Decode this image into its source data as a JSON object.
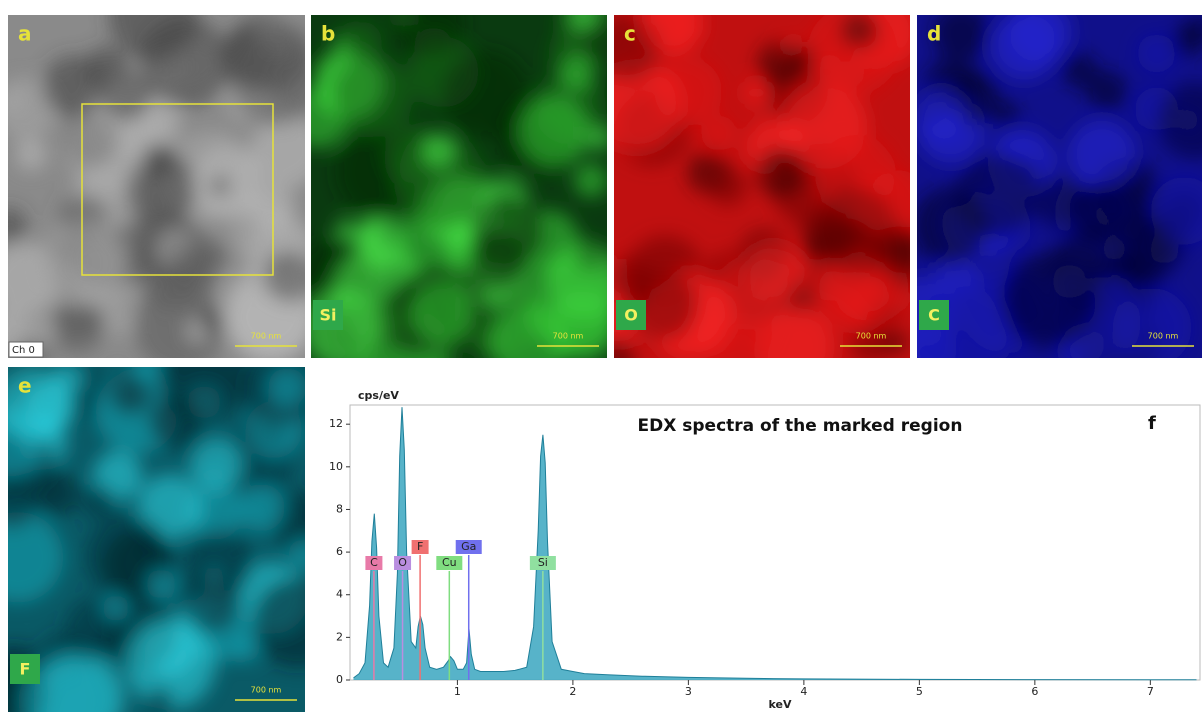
{
  "panels": [
    {
      "letter": "a",
      "channel": "Ch 0",
      "scale_bar": "700 nm"
    },
    {
      "letter": "b",
      "element": "Si",
      "scale_bar": "700 nm"
    },
    {
      "letter": "c",
      "element": "O",
      "scale_bar": "700 nm"
    },
    {
      "letter": "d",
      "element": "C",
      "scale_bar": "700 nm"
    },
    {
      "letter": "e",
      "element": "F",
      "scale_bar": "700 nm"
    }
  ],
  "chart_data": {
    "type": "area",
    "title": "EDX spectra of the marked region",
    "panel_letter": "f",
    "xlabel": "keV",
    "ylabel": "cps/eV",
    "x": [
      0.1,
      0.15,
      0.2,
      0.24,
      0.26,
      0.28,
      0.3,
      0.32,
      0.36,
      0.4,
      0.45,
      0.48,
      0.5,
      0.52,
      0.54,
      0.56,
      0.6,
      0.64,
      0.66,
      0.68,
      0.7,
      0.72,
      0.76,
      0.82,
      0.88,
      0.92,
      0.94,
      0.97,
      1.0,
      1.05,
      1.08,
      1.1,
      1.12,
      1.15,
      1.2,
      1.3,
      1.4,
      1.5,
      1.6,
      1.66,
      1.7,
      1.72,
      1.74,
      1.76,
      1.78,
      1.82,
      1.9,
      2.0,
      2.1,
      2.3,
      2.6,
      3.0,
      3.5,
      4.0,
      5.0,
      6.0,
      7.0,
      7.4
    ],
    "values": [
      0.1,
      0.3,
      0.8,
      3.5,
      6.5,
      7.8,
      6.2,
      3.0,
      0.8,
      0.6,
      1.5,
      5,
      10.5,
      12.8,
      10.8,
      6,
      1.8,
      1.5,
      2.5,
      3.0,
      2.6,
      1.5,
      0.6,
      0.5,
      0.6,
      0.9,
      1.1,
      0.9,
      0.5,
      0.5,
      0.8,
      2.4,
      1.2,
      0.5,
      0.4,
      0.4,
      0.4,
      0.45,
      0.6,
      2.5,
      7,
      10.5,
      11.5,
      10.2,
      6.5,
      1.8,
      0.5,
      0.4,
      0.3,
      0.25,
      0.18,
      0.12,
      0.08,
      0.05,
      0.03,
      0.02,
      0.01,
      0.01
    ],
    "color": "#3aa6c0",
    "xlim": [
      0.07,
      7.43
    ],
    "ylim": [
      0,
      12.9
    ],
    "xticks": [
      1,
      2,
      3,
      4,
      5,
      6,
      7
    ],
    "yticks": [
      0,
      2,
      4,
      6,
      8,
      10,
      12
    ],
    "annotations": [
      {
        "label": "C",
        "x": 0.277,
        "color": "#e87aa8"
      },
      {
        "label": "O",
        "x": 0.525,
        "color": "#b98ee0"
      },
      {
        "label": "F",
        "x": 0.677,
        "color": "#f07070"
      },
      {
        "label": "Cu",
        "x": 0.93,
        "color": "#80dd80"
      },
      {
        "label": "Ga",
        "x": 1.098,
        "color": "#7070ee"
      },
      {
        "label": "Si",
        "x": 1.74,
        "color": "#90e0a0"
      }
    ]
  }
}
